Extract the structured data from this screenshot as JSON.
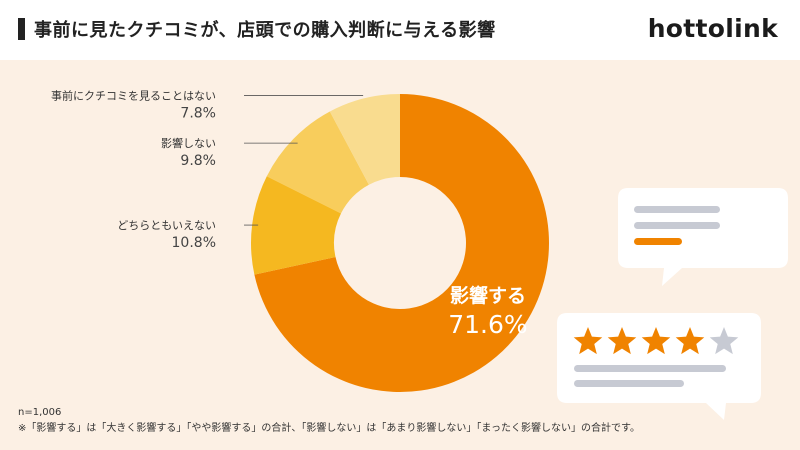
{
  "header": {
    "title": "事前に見たクチコミが、店頭での購入判断に与える影響",
    "brand": "hottolink"
  },
  "chart_data": {
    "type": "pie",
    "title": "事前に見たクチコミが、店頭での購入判断に与える影響",
    "categories": [
      "影響する",
      "どちらともいえない",
      "影響しない",
      "事前にクチコミを見ることはない"
    ],
    "values": [
      71.6,
      10.8,
      9.8,
      7.8
    ],
    "labels": [
      "71.6%",
      "10.8%",
      "9.8%",
      "7.8%"
    ],
    "colors": [
      "#f08300",
      "#f5b820",
      "#f8cd5c",
      "#f9dc8f"
    ],
    "hole": "donut"
  },
  "illustration": {
    "stars_filled": 4,
    "stars_total": 5,
    "accent_color": "#f08300",
    "line_color": "#c7cad3"
  },
  "notes": {
    "sample": "n=1,006",
    "footnote": "※「影響する」は「大きく影響する」「やや影響する」の合計、「影響しない」は「あまり影響しない」「まったく影響しない」の合計です。"
  }
}
